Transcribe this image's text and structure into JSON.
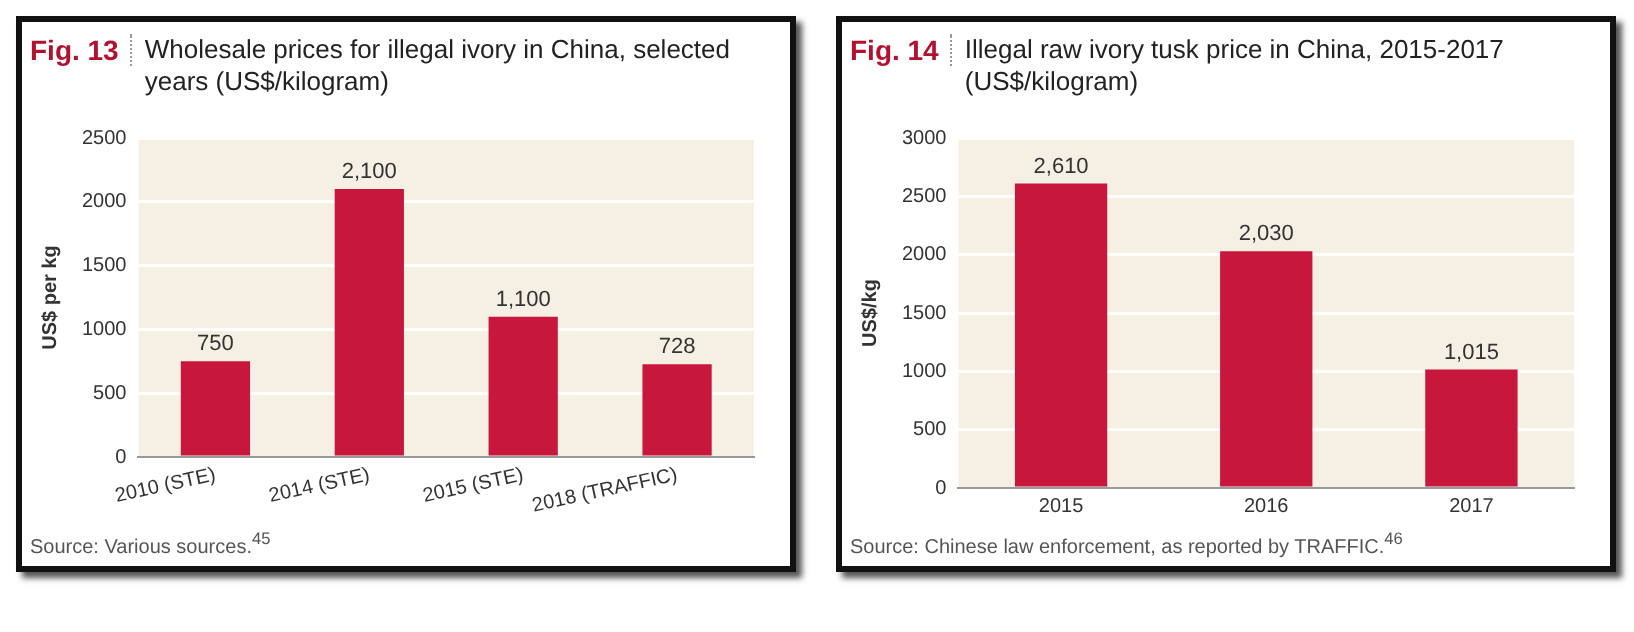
{
  "chart_data": [
    {
      "type": "bar",
      "title": "Wholesale prices for illegal ivory in China, selected years (US$/kilogram)",
      "ylabel": "US$ per kg",
      "categories": [
        "2010 (STE)",
        "2014 (STE)",
        "2015 (STE)",
        "2018 (TRAFFIC)"
      ],
      "values": [
        750,
        2100,
        1100,
        728
      ],
      "value_labels": [
        "750",
        "2,100",
        "1,100",
        "728"
      ],
      "color": "#c8173c",
      "ylim": [
        0,
        2500
      ],
      "yticks": [
        0,
        500,
        1000,
        1500,
        2000,
        2500
      ],
      "grid": "y",
      "legend": false,
      "annotations": [
        "Fig. 13",
        "Source: Various sources.$^{45}$"
      ]
    },
    {
      "type": "bar",
      "title": "Illegal raw ivory tusk price in China, 2015-2017 (US$/kilogram)",
      "ylabel": "US$/kg",
      "categories": [
        "2015",
        "2016",
        "2017"
      ],
      "values": [
        2610,
        2030,
        1015
      ],
      "value_labels": [
        "2,610",
        "2,030",
        "1,015"
      ],
      "color": "#c8173c",
      "ylim": [
        0,
        3000
      ],
      "yticks": [
        0,
        500,
        1000,
        1500,
        2000,
        2500,
        3000
      ],
      "grid": "y",
      "legend": false,
      "annotations": [
        "Fig. 14",
        "Source: Chinese law enforcement, as reported by TRAFFIC.$^{46}$"
      ]
    }
  ]
}
